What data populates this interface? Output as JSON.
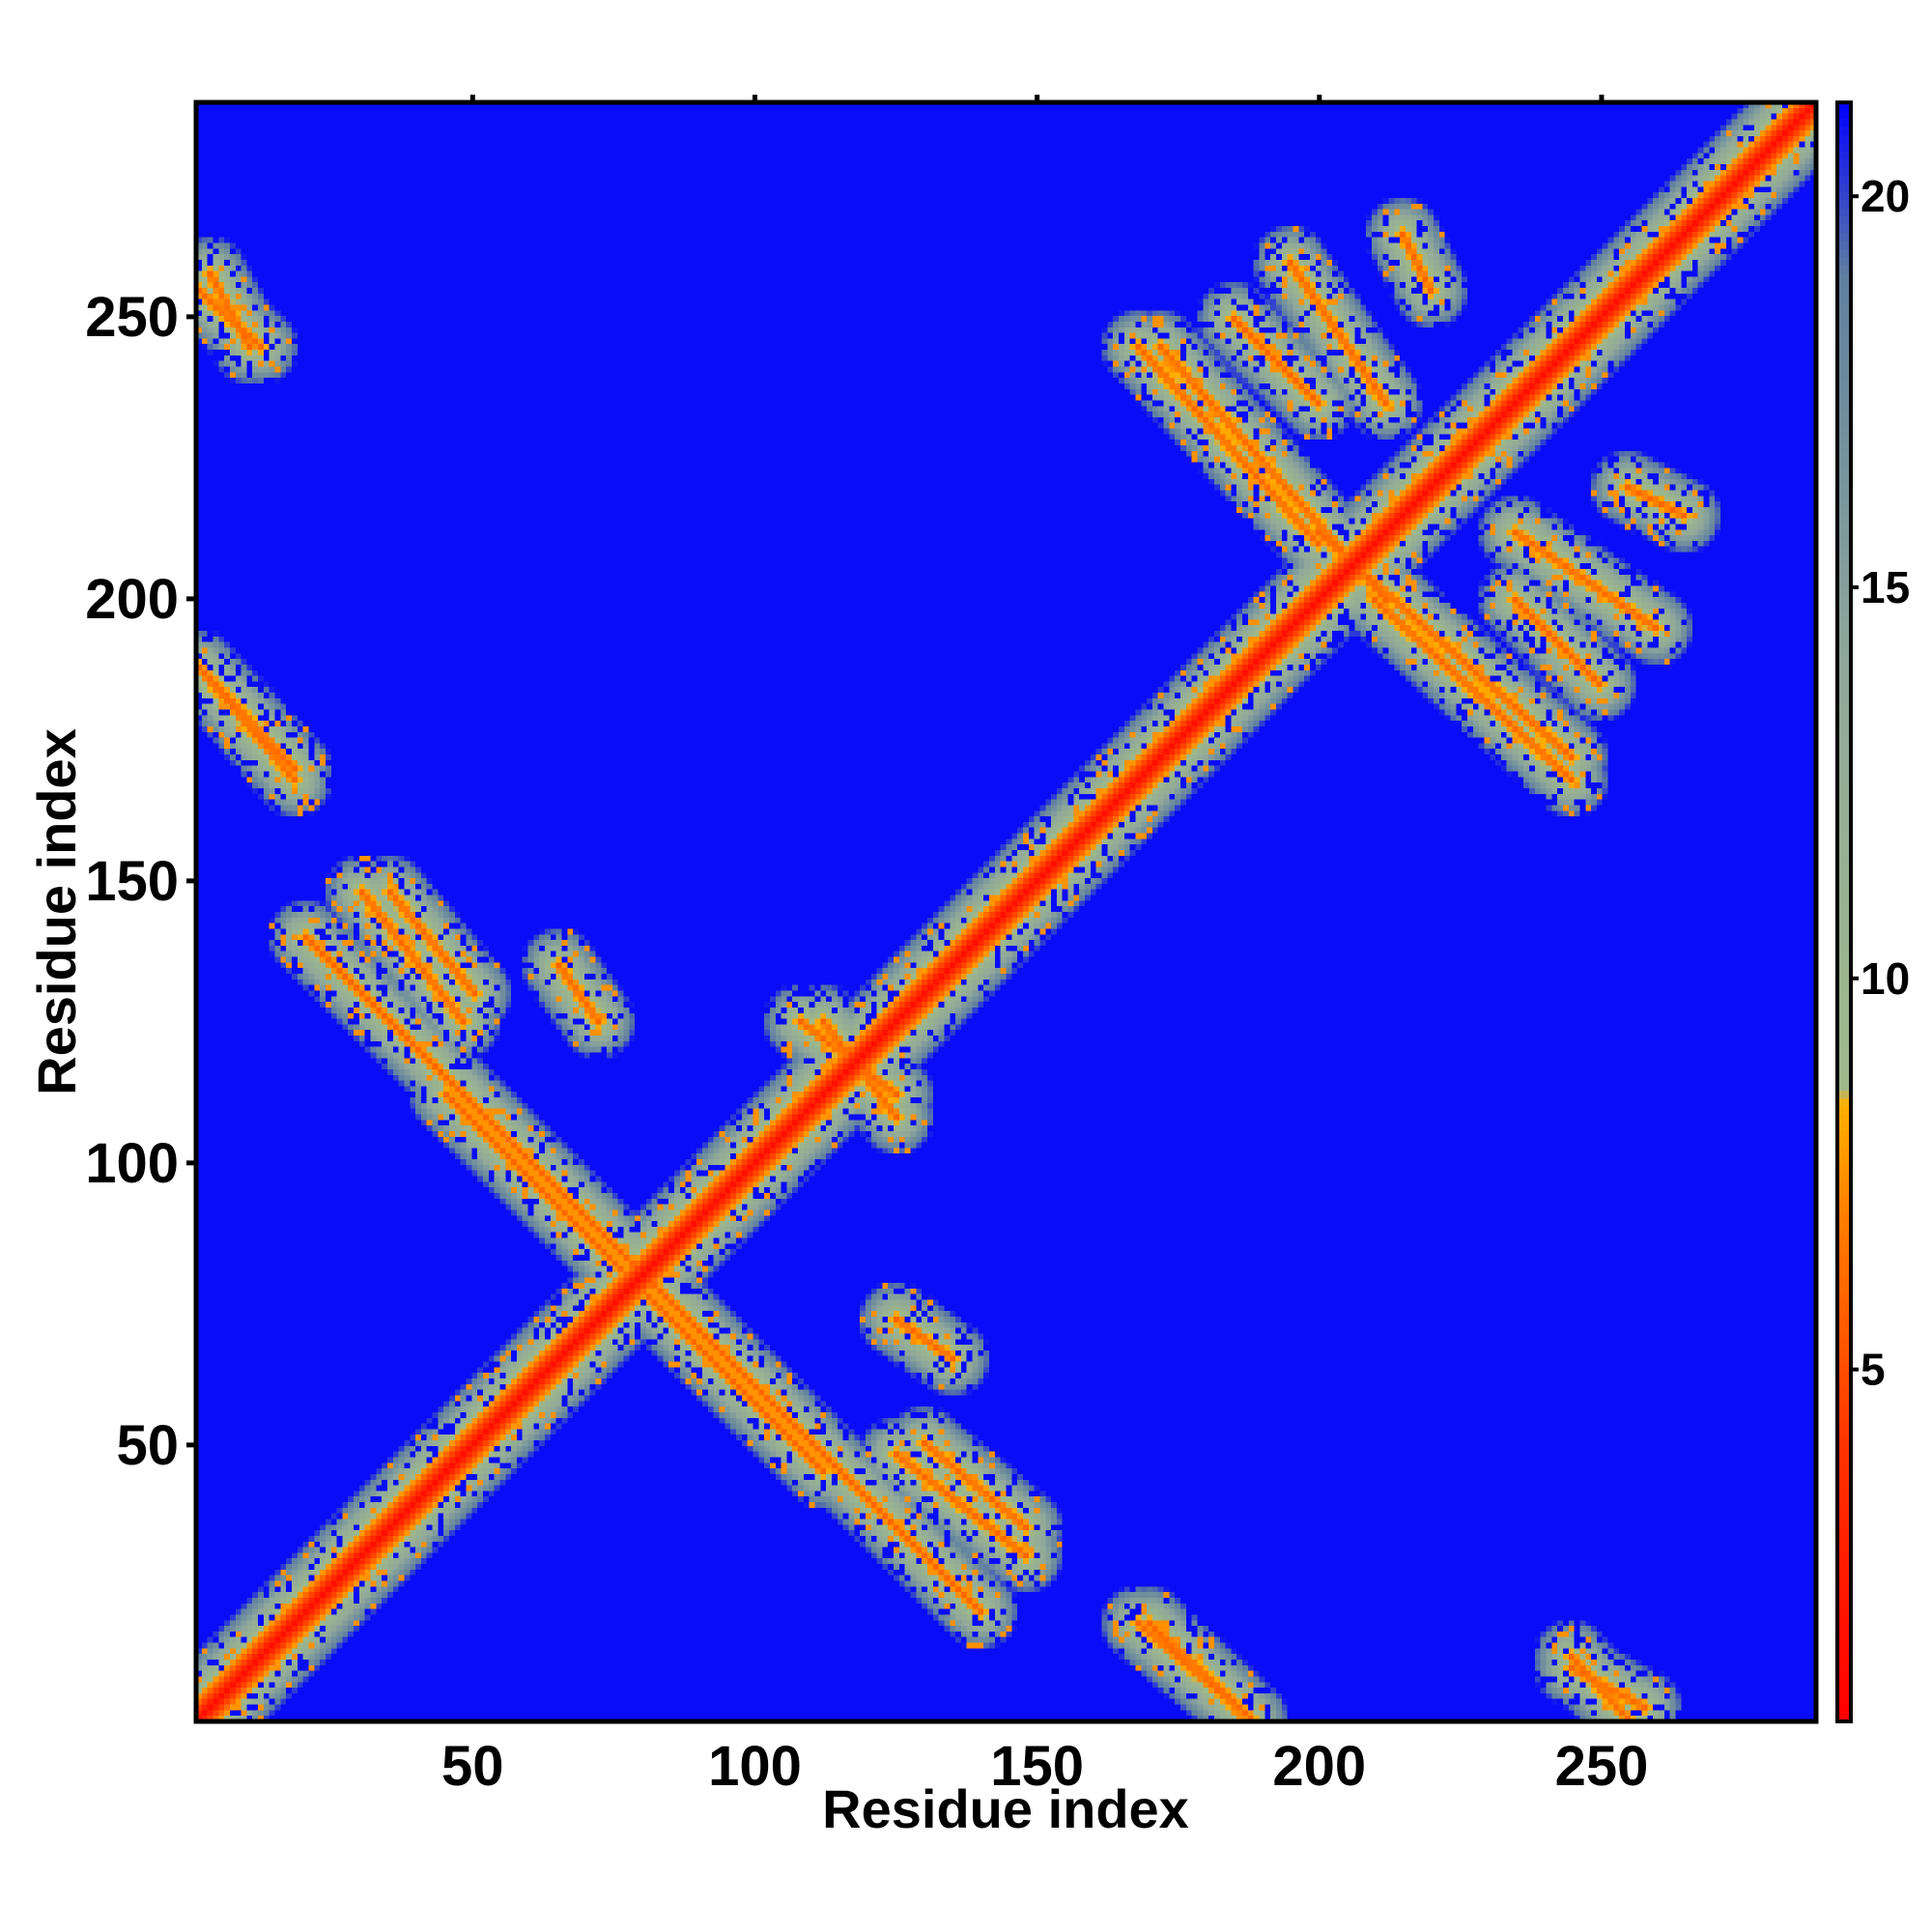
{
  "chart_data": {
    "type": "heatmap",
    "title": "",
    "xlabel": "Residue index",
    "ylabel": "Residue index",
    "n_residues": 288,
    "xlim": [
      1,
      288
    ],
    "ylim": [
      1,
      288
    ],
    "x_ticks": [
      50,
      100,
      150,
      200,
      250
    ],
    "y_ticks": [
      50,
      100,
      150,
      200,
      250
    ],
    "colorbar": {
      "range": [
        0.5,
        21.2
      ],
      "ticks": [
        5,
        10,
        15,
        20
      ],
      "stops": [
        {
          "value": 0.5,
          "color": "#ff0000"
        },
        {
          "value": 4.0,
          "color": "#ff3300"
        },
        {
          "value": 7.0,
          "color": "#ff7f00"
        },
        {
          "value": 8.4,
          "color": "#ffb000"
        },
        {
          "value": 8.6,
          "color": "#9fb98a"
        },
        {
          "value": 14.0,
          "color": "#8fa89a"
        },
        {
          "value": 19.0,
          "color": "#5f7fa0"
        },
        {
          "value": 21.2,
          "color": "#0000ff"
        }
      ]
    },
    "background_value": 21.0,
    "contact_features": [
      {
        "x": [
          1,
          288
        ],
        "y": [
          1,
          288
        ],
        "value": 1.5,
        "kind": "diagonal"
      },
      {
        "x": [
          45,
          112
        ],
        "y": [
          112,
          45
        ],
        "value": 6,
        "kind": "antiparallel"
      },
      {
        "x": [
          60,
          85
        ],
        "y": [
          100,
          75
        ],
        "value": 6,
        "kind": "antiparallel"
      },
      {
        "x": [
          85,
          140
        ],
        "y": [
          75,
          20
        ],
        "value": 6,
        "kind": "antiparallel"
      },
      {
        "x": [
          30,
          48
        ],
        "y": [
          148,
          125
        ],
        "value": 6,
        "kind": "antiparallel"
      },
      {
        "x": [
          65,
          72
        ],
        "y": [
          135,
          125
        ],
        "value": 6,
        "kind": "antiparallel"
      },
      {
        "x": [
          1,
          18
        ],
        "y": [
          188,
          170
        ],
        "value": 6,
        "kind": "antiparallel"
      },
      {
        "x": [
          1,
          12
        ],
        "y": [
          255,
          245
        ],
        "value": 6,
        "kind": "antiparallel"
      },
      {
        "x": [
          108,
          125
        ],
        "y": [
          125,
          112
        ],
        "value": 6,
        "kind": "antiparallel"
      },
      {
        "x": [
          168,
          188
        ],
        "y": [
          18,
          1
        ],
        "value": 6,
        "kind": "antiparallel"
      },
      {
        "x": [
          245,
          258
        ],
        "y": [
          10,
          3
        ],
        "value": 6,
        "kind": "antiparallel"
      },
      {
        "x": [
          168,
          200
        ],
        "y": [
          245,
          210
        ],
        "value": 6,
        "kind": "antiparallel"
      },
      {
        "x": [
          195,
          212
        ],
        "y": [
          260,
          235
        ],
        "value": 6,
        "kind": "antiparallel"
      },
      {
        "x": [
          200,
          245
        ],
        "y": [
          212,
          172
        ],
        "value": 6,
        "kind": "antiparallel"
      },
      {
        "x": [
          235,
          250
        ],
        "y": [
          200,
          185
        ],
        "value": 6,
        "kind": "antiparallel"
      },
      {
        "x": [
          215,
          220
        ],
        "y": [
          265,
          255
        ],
        "value": 6,
        "kind": "antiparallel"
      },
      {
        "x": [
          130,
          148
        ],
        "y": [
          50,
          35
        ],
        "value": 6,
        "kind": "antiparallel"
      }
    ]
  }
}
